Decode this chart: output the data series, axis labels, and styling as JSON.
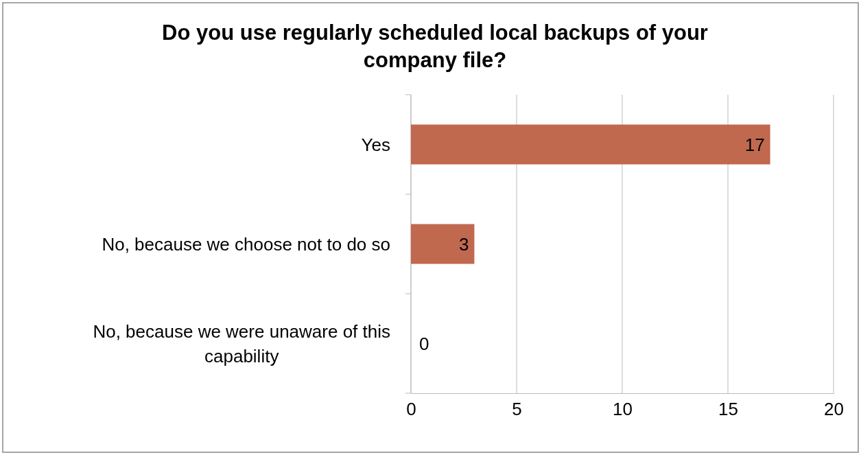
{
  "chart_data": {
    "type": "bar",
    "orientation": "horizontal",
    "title": "Do you use regularly scheduled local backups of your company file?",
    "categories": [
      "Yes",
      "No, because we choose not to do so",
      "No, because we were unaware of this capability"
    ],
    "values": [
      17,
      3,
      0
    ],
    "color": "#c0694f",
    "data_labels": true,
    "xlim": [
      0,
      20
    ],
    "xticks": [
      0,
      5,
      10,
      15,
      20
    ],
    "grid": "x"
  }
}
